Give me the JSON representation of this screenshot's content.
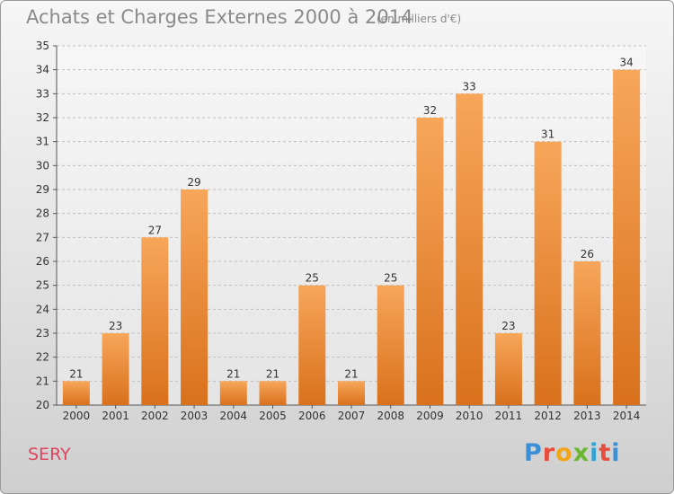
{
  "header": {
    "title": "Achats et Charges Externes 2000 à 2014",
    "unit": "(en milliers d'€)"
  },
  "footer": {
    "commune": "SERY",
    "logo_text": "Proxiti"
  },
  "colors": {
    "bar_top": "#f7a65a",
    "bar_bottom": "#d9711c",
    "commune_text": "#e0455f",
    "logo_letters": [
      "#3b8fd6",
      "#e64d3d",
      "#f2a51a",
      "#6bb82e",
      "#2fa3d6",
      "#e64d3d",
      "#3b8fd6"
    ]
  },
  "chart_data": {
    "type": "bar",
    "title": "Achats et Charges Externes 2000 à 2014",
    "subtitle": "(en milliers d'€)",
    "categories": [
      "2000",
      "2001",
      "2002",
      "2003",
      "2004",
      "2005",
      "2006",
      "2007",
      "2008",
      "2009",
      "2010",
      "2011",
      "2012",
      "2013",
      "2014"
    ],
    "values": [
      21,
      23,
      27,
      29,
      21,
      21,
      25,
      21,
      25,
      32,
      33,
      23,
      31,
      26,
      34
    ],
    "ylim": [
      20,
      35
    ],
    "yticks": [
      20,
      21,
      22,
      23,
      24,
      25,
      26,
      27,
      28,
      29,
      30,
      31,
      32,
      33,
      34,
      35
    ],
    "grid": "horizontal dashed",
    "legend": "none",
    "xlabel": "",
    "ylabel": ""
  }
}
